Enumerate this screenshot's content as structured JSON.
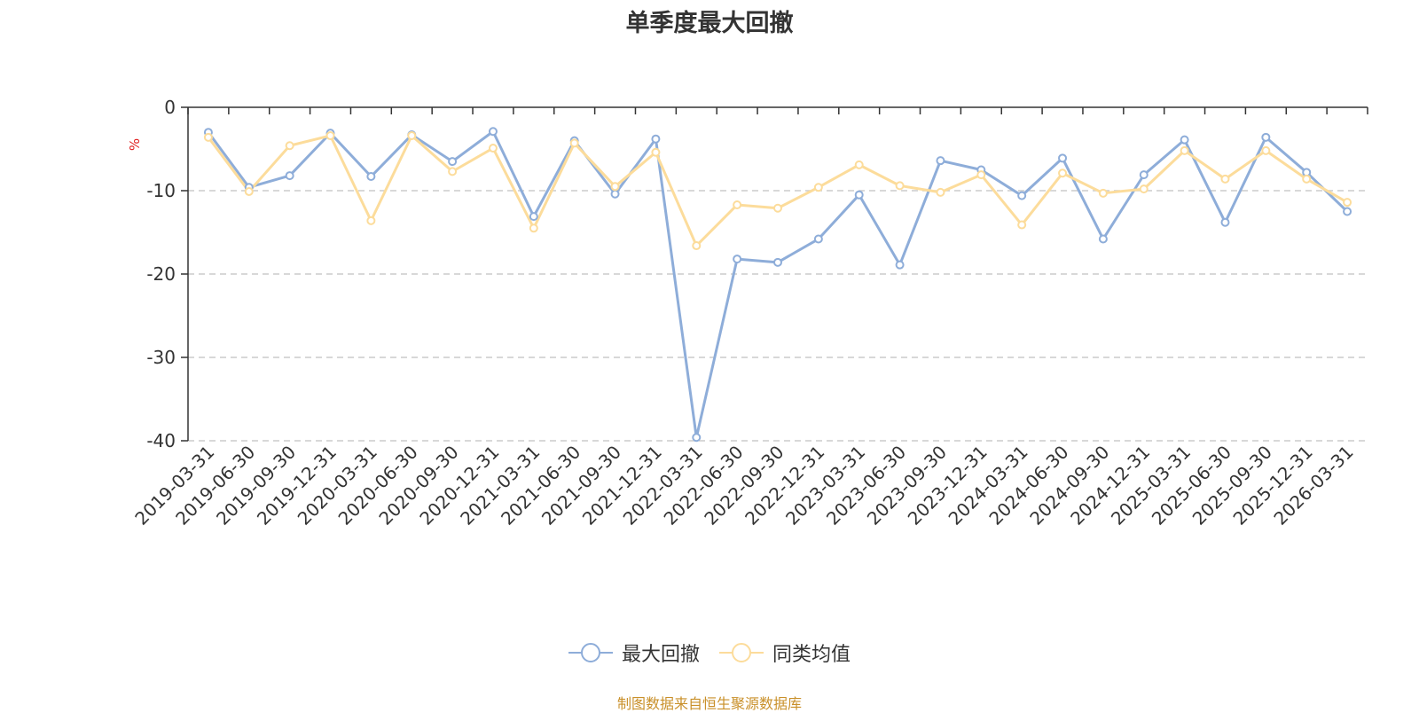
{
  "chart_data": {
    "type": "line",
    "title": "单季度最大回撤",
    "ylabel": "%",
    "ylim": [
      -40,
      0
    ],
    "yticks": [
      0,
      -10,
      -20,
      -30,
      -40
    ],
    "ytick_labels": [
      "0",
      "-10",
      "-20",
      "-30",
      "-40"
    ],
    "grid": true,
    "legend_position": "bottom-center",
    "categories": [
      "2019-03-31",
      "2019-06-30",
      "2019-09-30",
      "2019-12-31",
      "2020-03-31",
      "2020-06-30",
      "2020-09-30",
      "2020-12-31",
      "2021-03-31",
      "2021-06-30",
      "2021-09-30",
      "2021-12-31",
      "2022-03-31",
      "2022-06-30",
      "2022-09-30",
      "2022-12-31",
      "2023-03-31",
      "2023-06-30",
      "2023-09-30",
      "2023-12-31",
      "2024-03-31",
      "2024-06-30",
      "2024-09-30",
      "2024-12-31",
      "2025-03-31",
      "2025-06-30",
      "2025-09-30",
      "2025-12-31",
      "2026-03-31"
    ],
    "series": [
      {
        "name": "最大回撤",
        "color": "#8eadd9",
        "values": [
          -3.0,
          -9.6,
          -8.2,
          -3.1,
          -8.3,
          -3.3,
          -6.5,
          -2.9,
          -13.1,
          -4.0,
          -10.4,
          -3.8,
          -39.6,
          -18.2,
          -18.6,
          -15.8,
          -10.5,
          -18.9,
          -6.4,
          -7.5,
          -10.6,
          -6.1,
          -15.8,
          -8.1,
          -3.9,
          -13.8,
          -3.6,
          -7.8,
          -12.5
        ]
      },
      {
        "name": "同类均值",
        "color": "#fcdc9b",
        "values": [
          -3.6,
          -10.1,
          -4.6,
          -3.4,
          -13.6,
          -3.4,
          -7.7,
          -4.9,
          -14.5,
          -4.3,
          -9.5,
          -5.4,
          -16.6,
          -11.7,
          -12.1,
          -9.6,
          -6.9,
          -9.4,
          -10.2,
          -8.1,
          -14.1,
          -7.9,
          -10.3,
          -9.8,
          -5.2,
          -8.6,
          -5.2,
          -8.6,
          -11.4
        ]
      }
    ]
  },
  "legend": {
    "items": [
      {
        "label": "最大回撤",
        "color": "#8eadd9"
      },
      {
        "label": "同类均值",
        "color": "#fcdc9b"
      }
    ]
  },
  "colors": {
    "unit_label": "#e02020",
    "source_note": "#c9902a",
    "grid": "#cccccc",
    "axis": "#333333"
  },
  "source_note": "制图数据来自恒生聚源数据库"
}
